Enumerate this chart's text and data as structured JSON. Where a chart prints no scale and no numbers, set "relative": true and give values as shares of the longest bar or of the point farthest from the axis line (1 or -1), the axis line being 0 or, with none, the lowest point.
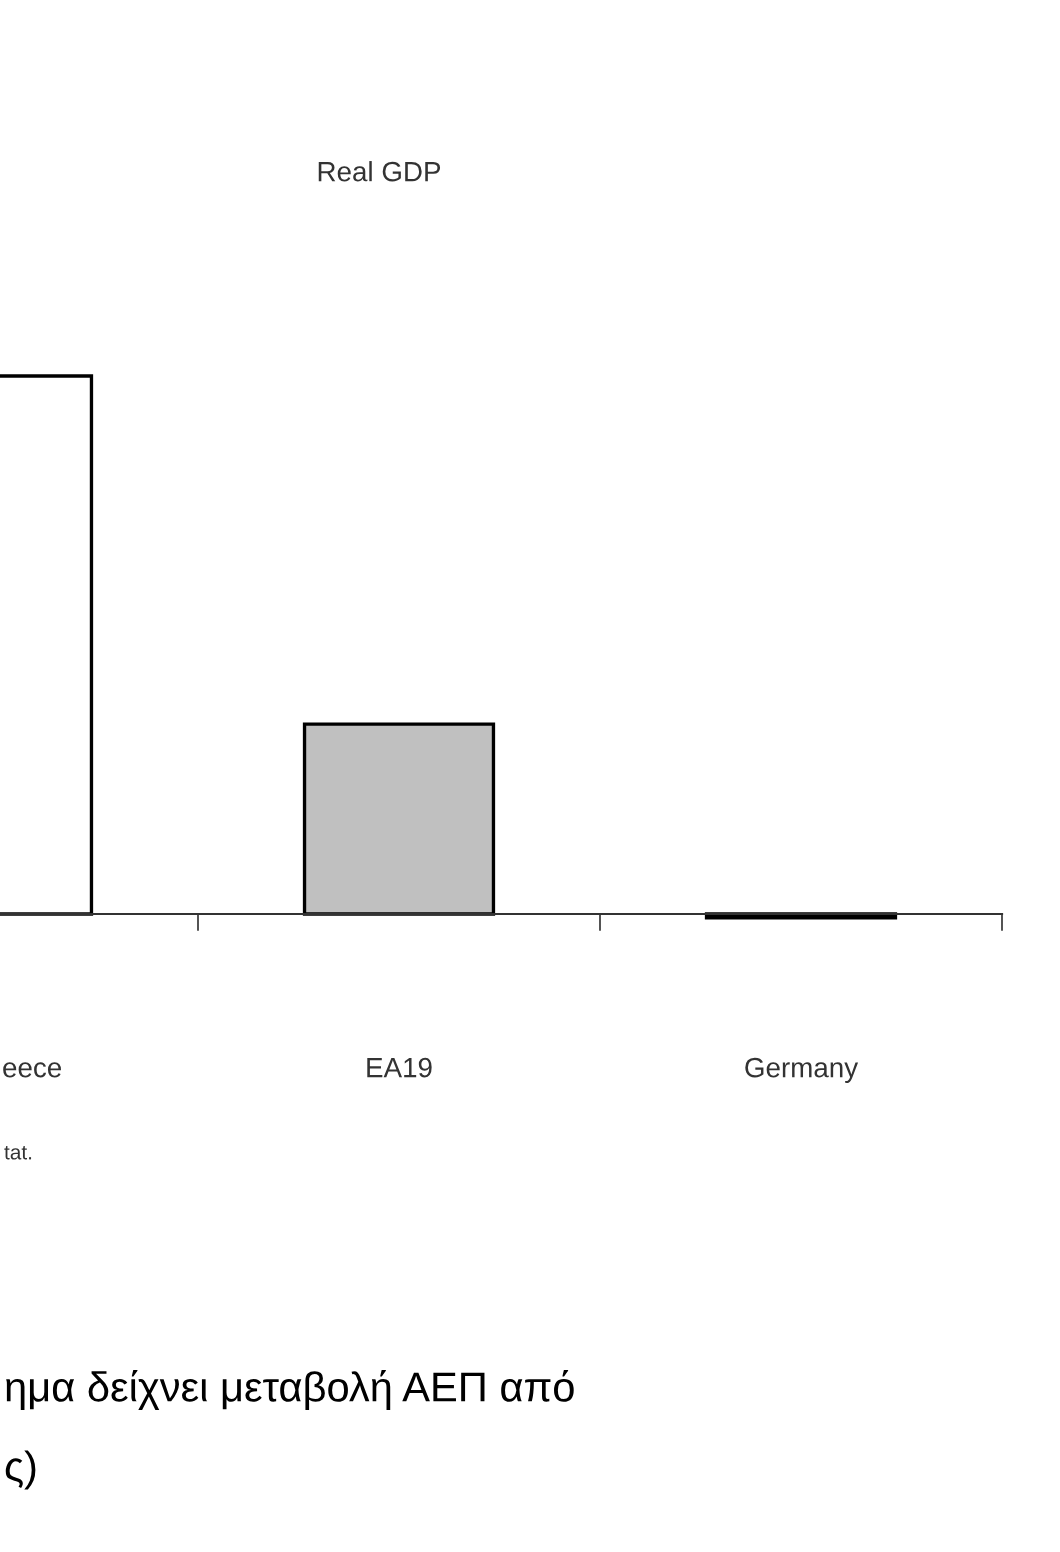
{
  "chart_data": {
    "type": "bar",
    "title": "Real GDP",
    "relative": true,
    "categories": [
      "eece",
      "EA19",
      "Germany"
    ],
    "values": [
      1,
      0.353,
      -0.007
    ],
    "colors": [
      "#ffffff",
      "#c0c0c0",
      "#000000"
    ],
    "annotations": [
      "tat.",
      "ημα δείχνει μεταβολή ΑΕΠ από",
      "ς)"
    ]
  }
}
